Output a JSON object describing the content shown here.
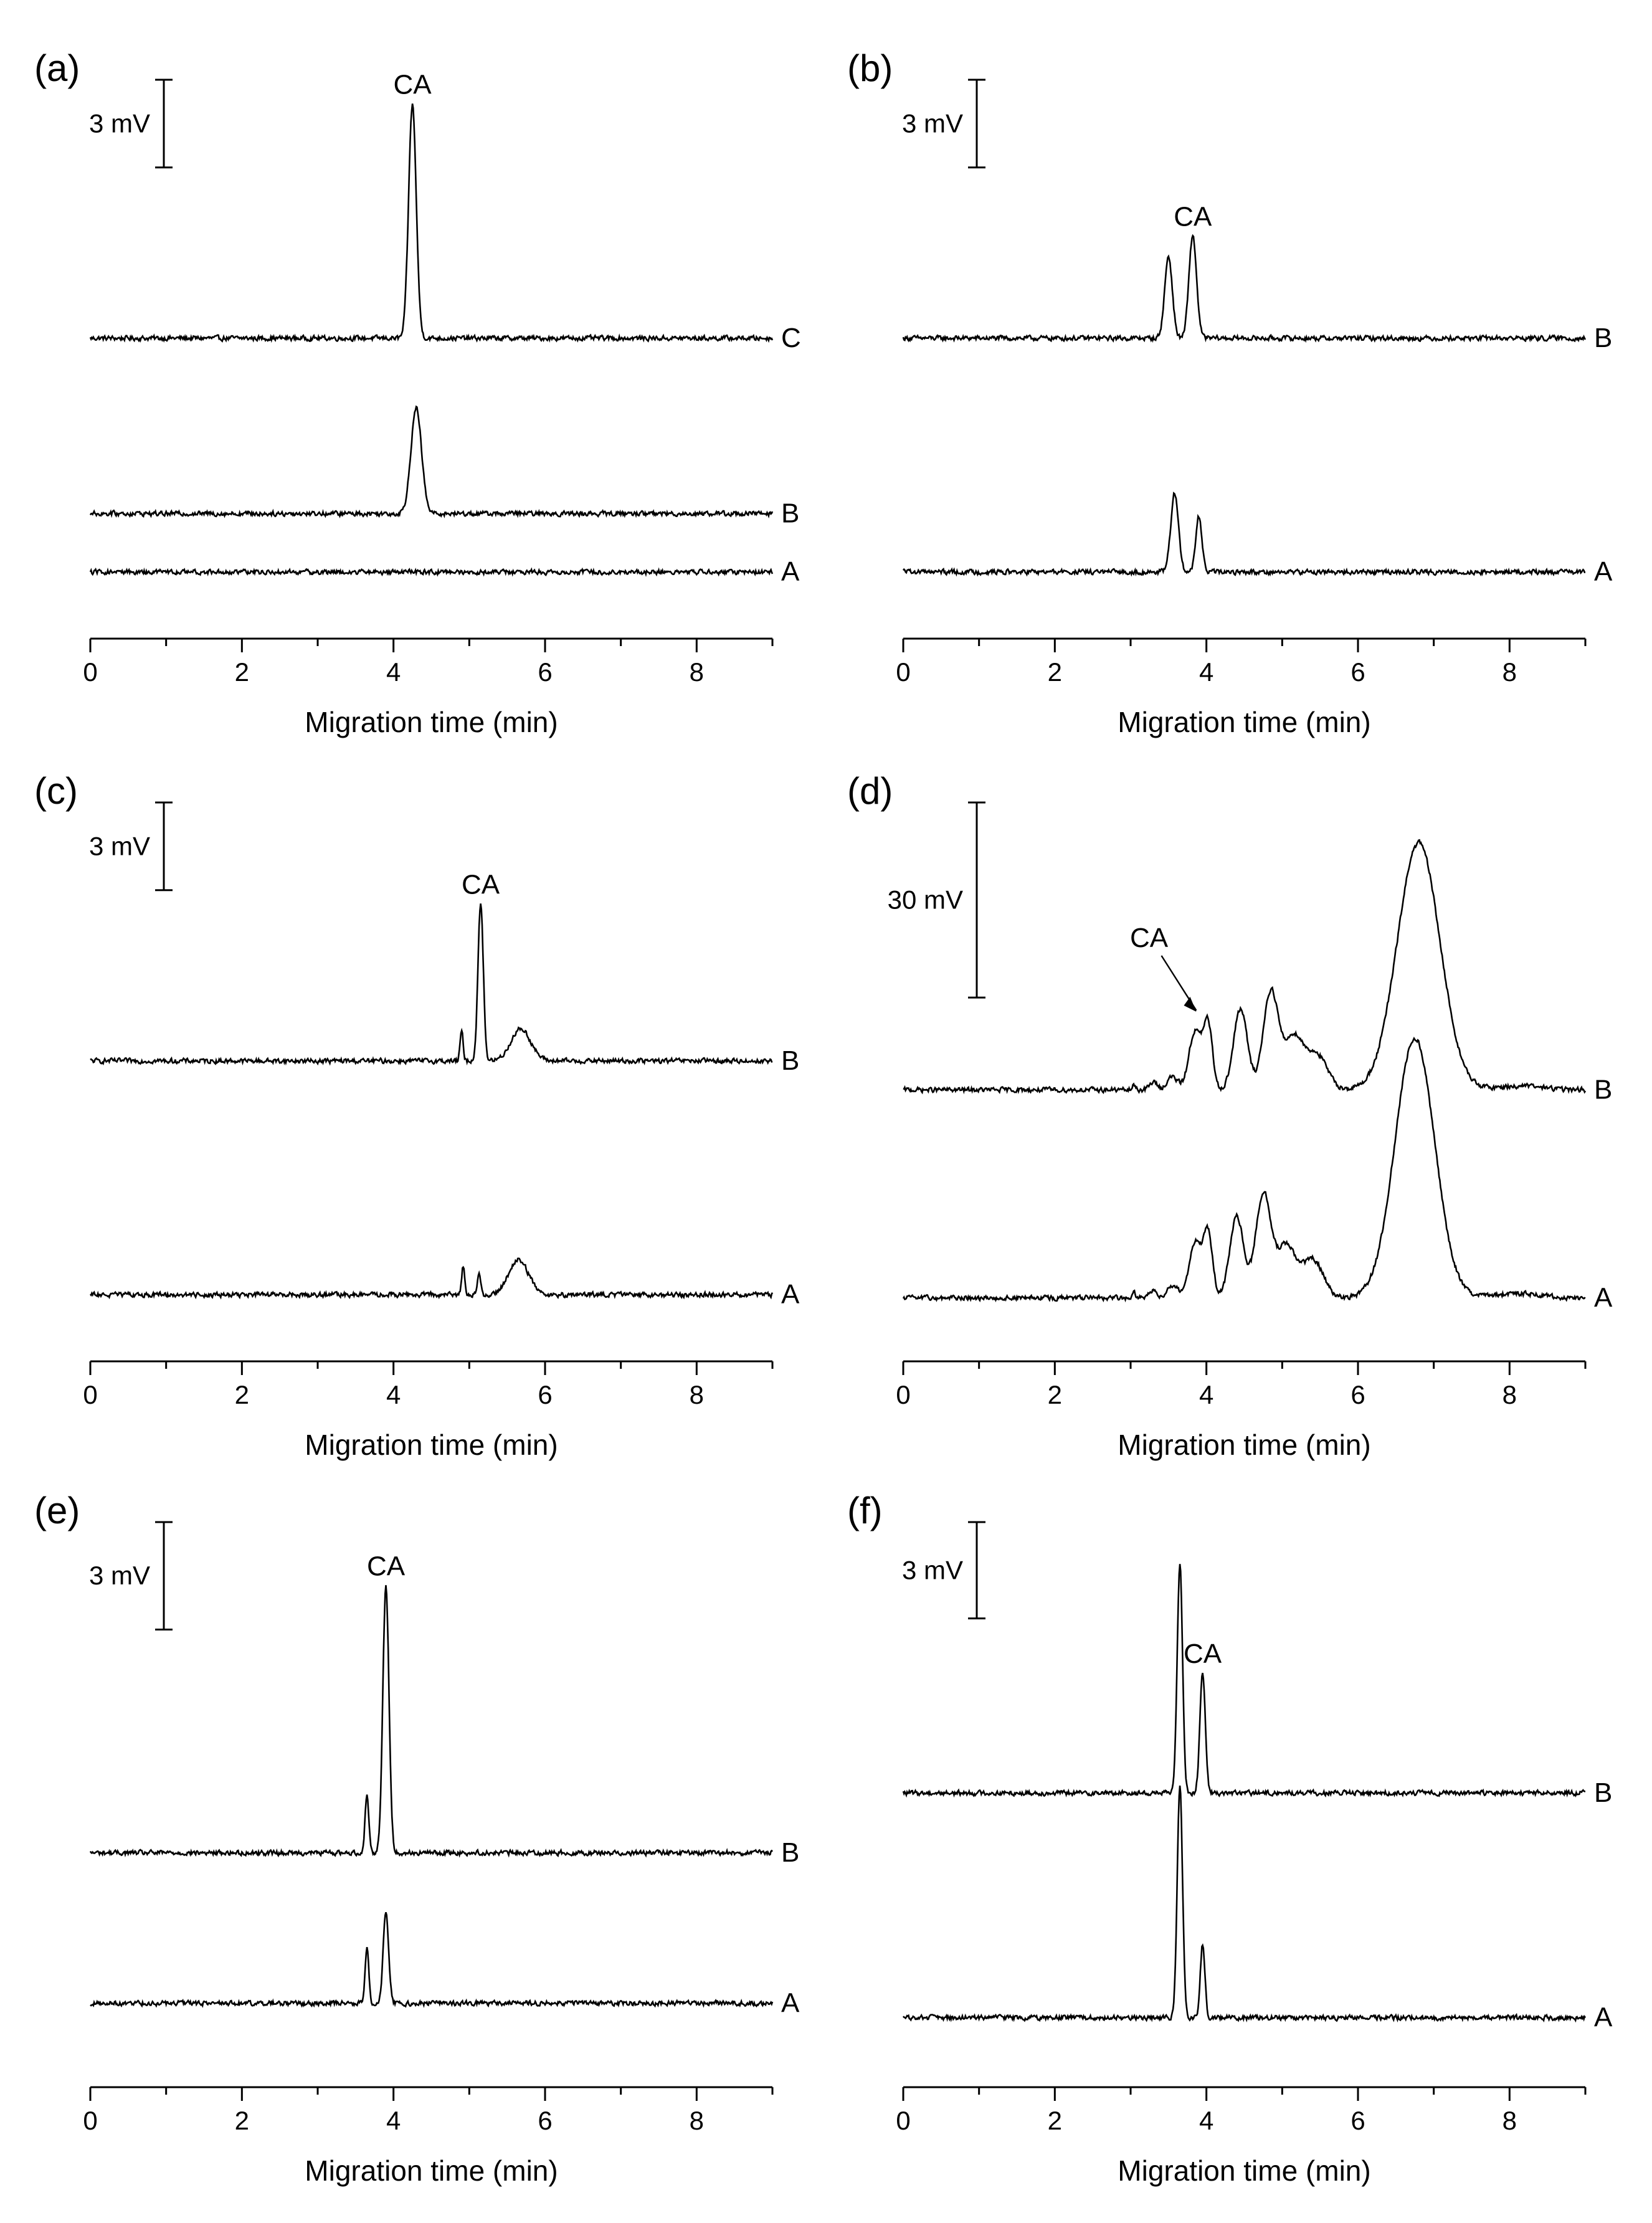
{
  "chart_data": [
    {
      "type": "line",
      "panel_label": "(a)",
      "xlabel": "Migration time (min)",
      "xlim": [
        0,
        9
      ],
      "xticks": [
        0,
        2,
        4,
        6,
        8
      ],
      "scale_bar": {
        "label": "3 mV",
        "value": 3
      },
      "peak_label": {
        "text": "CA",
        "x": 4.25
      },
      "series": [
        {
          "name": "C",
          "baseline": 0.0,
          "peaks": [
            {
              "x": 4.25,
              "height": 8.0,
              "width": 0.05
            }
          ]
        },
        {
          "name": "B",
          "baseline": -6.0,
          "peaks": [
            {
              "x": 4.3,
              "height": 3.6,
              "width": 0.07
            }
          ]
        },
        {
          "name": "A",
          "baseline": -8.0,
          "peaks": []
        }
      ],
      "ylim": [
        -9,
        8.8
      ]
    },
    {
      "type": "line",
      "panel_label": "(b)",
      "xlabel": "Migration time (min)",
      "xlim": [
        0,
        9
      ],
      "xticks": [
        0,
        2,
        4,
        6,
        8
      ],
      "scale_bar": {
        "label": "3 mV",
        "value": 3
      },
      "peak_label": {
        "text": "CA",
        "x": 3.82
      },
      "series": [
        {
          "name": "B",
          "baseline": 0.0,
          "peaks": [
            {
              "x": 3.5,
              "height": 2.8,
              "width": 0.05
            },
            {
              "x": 3.82,
              "height": 3.5,
              "width": 0.05
            }
          ]
        },
        {
          "name": "A",
          "baseline": -8.0,
          "peaks": [
            {
              "x": 3.58,
              "height": 2.7,
              "width": 0.05
            },
            {
              "x": 3.9,
              "height": 1.9,
              "width": 0.04
            }
          ]
        }
      ],
      "ylim": [
        -9,
        8.8
      ]
    },
    {
      "type": "line",
      "panel_label": "(c)",
      "xlabel": "Migration time (min)",
      "xlim": [
        0,
        9
      ],
      "xticks": [
        0,
        2,
        4,
        6,
        8
      ],
      "scale_bar": {
        "label": "3 mV",
        "value": 3
      },
      "peak_label": {
        "text": "CA",
        "x": 5.15
      },
      "series": [
        {
          "name": "B",
          "baseline": 0.0,
          "peaks": [
            {
              "x": 4.9,
              "height": 1.0,
              "width": 0.02
            },
            {
              "x": 5.15,
              "height": 5.4,
              "width": 0.035
            },
            {
              "x": 5.68,
              "height": 1.1,
              "width": 0.13
            }
          ]
        },
        {
          "name": "A",
          "baseline": -8.0,
          "peaks": [
            {
              "x": 4.92,
              "height": 1.0,
              "width": 0.02
            },
            {
              "x": 5.13,
              "height": 0.8,
              "width": 0.02
            },
            {
              "x": 5.65,
              "height": 1.2,
              "width": 0.13
            }
          ]
        }
      ],
      "ylim": [
        -9,
        8.8
      ]
    },
    {
      "type": "line",
      "panel_label": "(d)",
      "xlabel": "Migration time (min)",
      "xlim": [
        0,
        9
      ],
      "xticks": [
        0,
        2,
        4,
        6,
        8
      ],
      "scale_bar": {
        "label": "30 mV",
        "value": 30
      },
      "peak_label": {
        "text": "CA",
        "x": 3.9,
        "arrow": true
      },
      "series": [
        {
          "name": "B",
          "baseline": 0.0,
          "peaks": [
            {
              "x": 3.05,
              "height": 0.8,
              "width": 0.02
            },
            {
              "x": 3.3,
              "height": 1.2,
              "width": 0.05
            },
            {
              "x": 3.55,
              "height": 2.0,
              "width": 0.07
            },
            {
              "x": 3.85,
              "height": 9.0,
              "width": 0.08
            },
            {
              "x": 4.02,
              "height": 10.0,
              "width": 0.06
            },
            {
              "x": 4.45,
              "height": 12.5,
              "width": 0.09
            },
            {
              "x": 4.85,
              "height": 15.2,
              "width": 0.1
            },
            {
              "x": 5.15,
              "height": 8.0,
              "width": 0.12
            },
            {
              "x": 5.45,
              "height": 5.5,
              "width": 0.14
            },
            {
              "x": 6.8,
              "height": 38.0,
              "width": 0.28
            },
            {
              "x": 8.15,
              "height": 0.6,
              "width": 0.3
            }
          ]
        },
        {
          "name": "A",
          "baseline": -32.0,
          "peaks": [
            {
              "x": 3.05,
              "height": 0.8,
              "width": 0.02
            },
            {
              "x": 3.3,
              "height": 1.2,
              "width": 0.05
            },
            {
              "x": 3.55,
              "height": 2.0,
              "width": 0.07
            },
            {
              "x": 3.85,
              "height": 8.5,
              "width": 0.08
            },
            {
              "x": 4.02,
              "height": 10.0,
              "width": 0.06
            },
            {
              "x": 4.4,
              "height": 12.5,
              "width": 0.09
            },
            {
              "x": 4.75,
              "height": 16.0,
              "width": 0.1
            },
            {
              "x": 5.05,
              "height": 8.0,
              "width": 0.12
            },
            {
              "x": 5.4,
              "height": 6.0,
              "width": 0.14
            },
            {
              "x": 6.75,
              "height": 40.0,
              "width": 0.26
            },
            {
              "x": 8.1,
              "height": 0.7,
              "width": 0.3
            }
          ]
        }
      ],
      "ylim": [
        -36,
        44
      ]
    },
    {
      "type": "line",
      "panel_label": "(e)",
      "xlabel": "Migration time (min)",
      "xlim": [
        0,
        9
      ],
      "xticks": [
        0,
        2,
        4,
        6,
        8
      ],
      "scale_bar": {
        "label": "3 mV",
        "value": 3
      },
      "peak_label": {
        "text": "CA",
        "x": 3.9
      },
      "series": [
        {
          "name": "B",
          "baseline": 0.0,
          "peaks": [
            {
              "x": 3.65,
              "height": 1.6,
              "width": 0.025
            },
            {
              "x": 3.9,
              "height": 7.5,
              "width": 0.04
            }
          ]
        },
        {
          "name": "A",
          "baseline": -4.2,
          "peaks": [
            {
              "x": 3.65,
              "height": 1.5,
              "width": 0.025
            },
            {
              "x": 3.9,
              "height": 2.6,
              "width": 0.035
            }
          ]
        }
      ],
      "ylim": [
        -5.5,
        9.2
      ]
    },
    {
      "type": "line",
      "panel_label": "(f)",
      "xlabel": "Migration time (min)",
      "xlim": [
        0,
        9
      ],
      "xticks": [
        0,
        2,
        4,
        6,
        8
      ],
      "scale_bar": {
        "label": "3 mV",
        "value": 3
      },
      "peak_label": {
        "text": "CA",
        "x": 3.95
      },
      "series": [
        {
          "name": "B",
          "baseline": 0.0,
          "peaks": [
            {
              "x": 3.65,
              "height": 7.2,
              "width": 0.035
            },
            {
              "x": 3.95,
              "height": 3.8,
              "width": 0.035
            }
          ]
        },
        {
          "name": "A",
          "baseline": -7.0,
          "peaks": [
            {
              "x": 3.65,
              "height": 7.2,
              "width": 0.035
            },
            {
              "x": 3.95,
              "height": 2.3,
              "width": 0.03
            }
          ]
        }
      ],
      "ylim": [
        -8,
        8.4
      ]
    }
  ]
}
